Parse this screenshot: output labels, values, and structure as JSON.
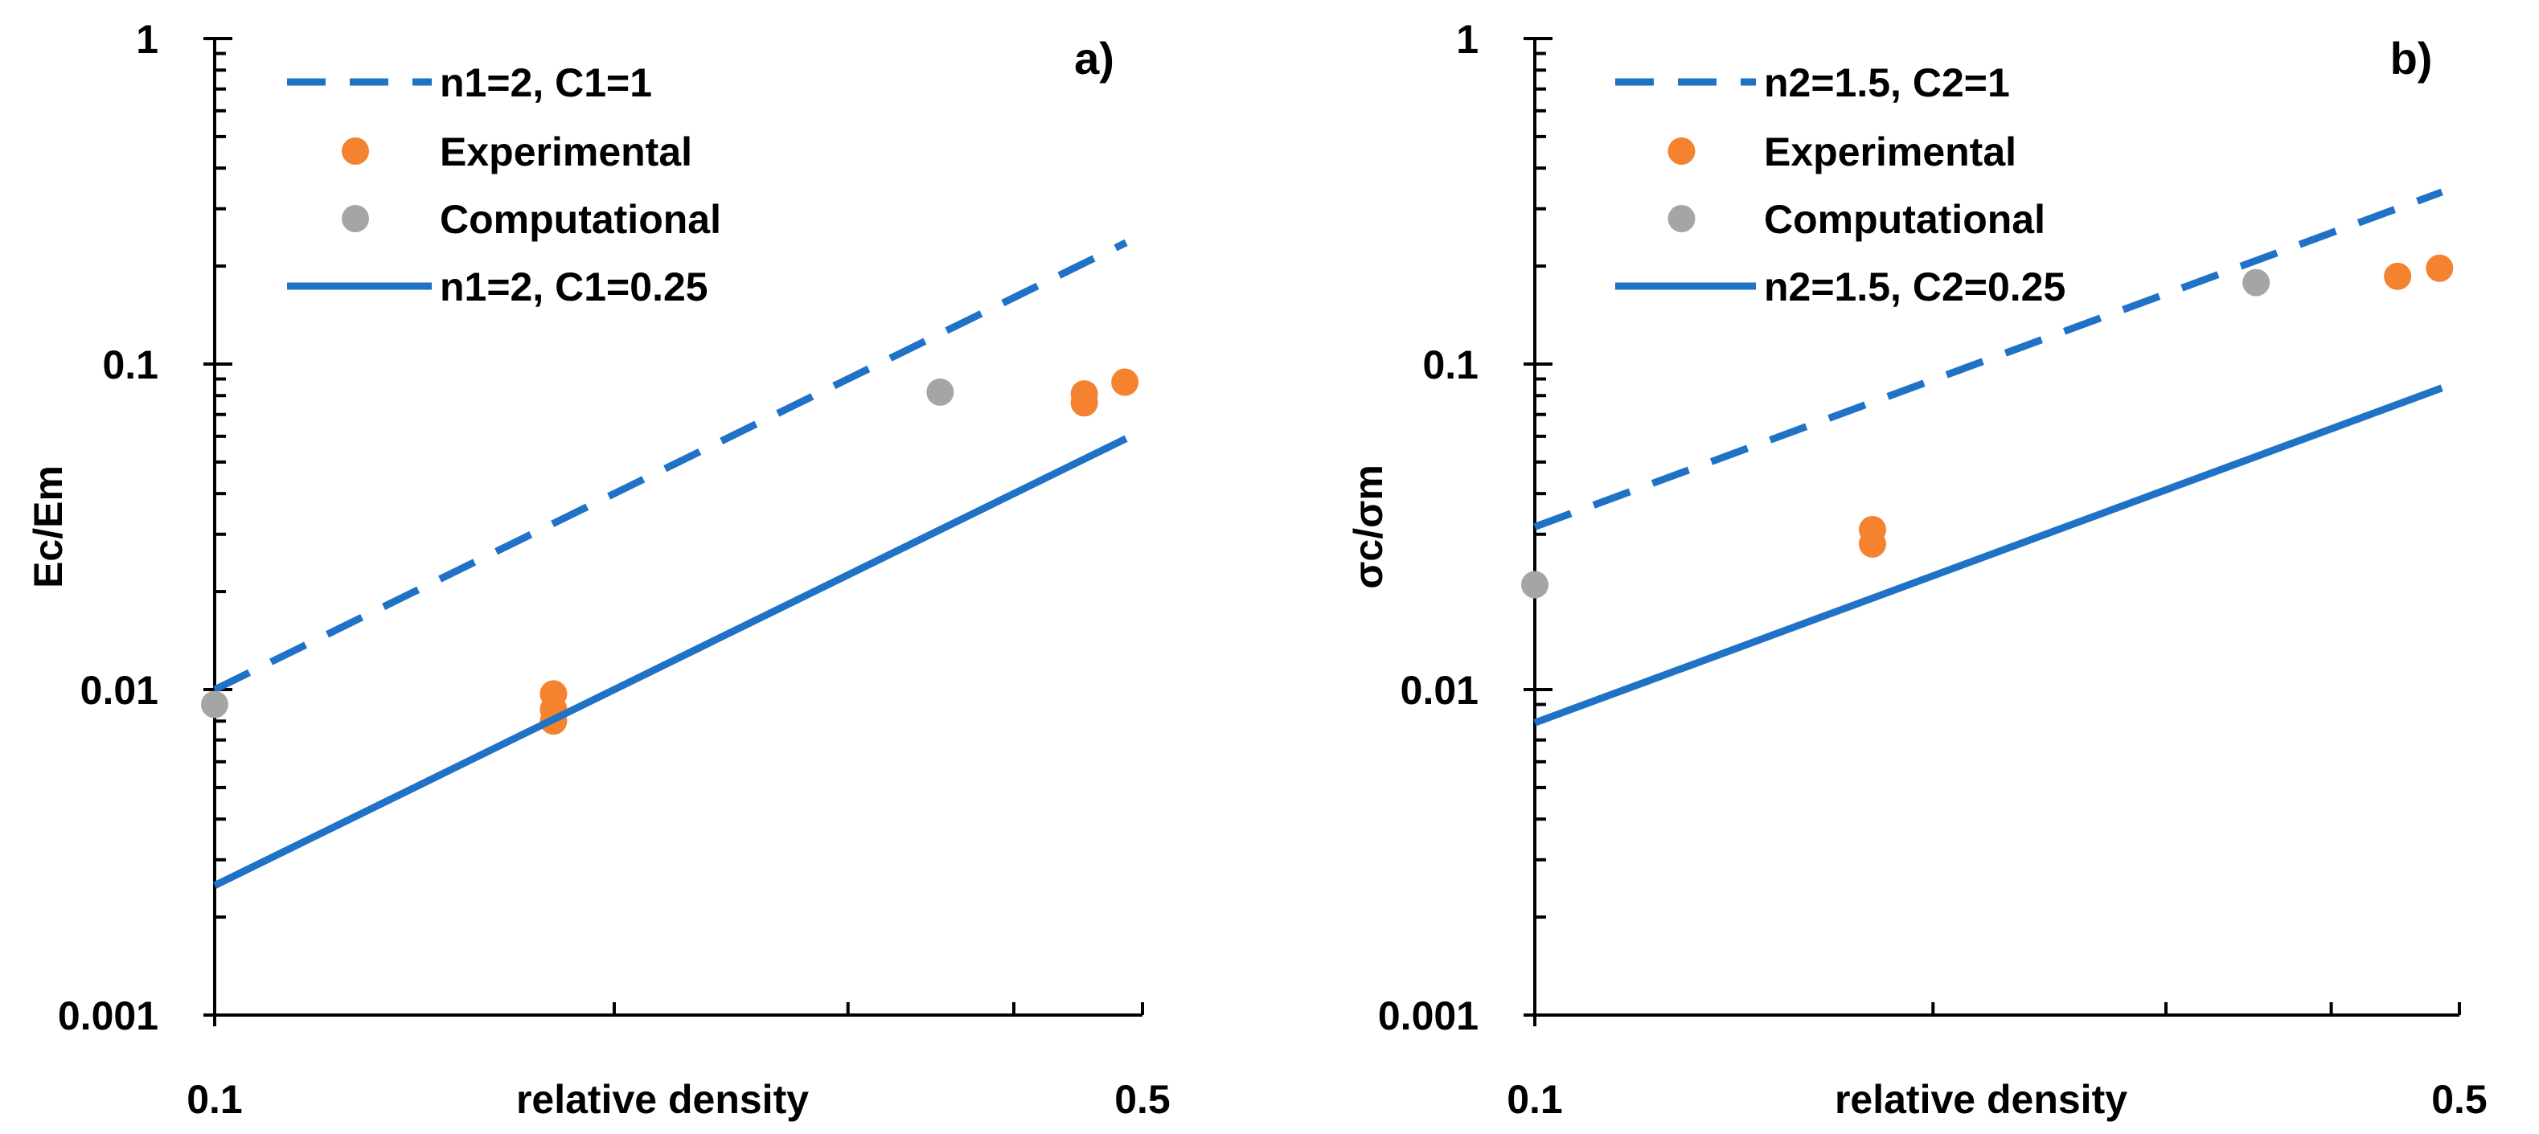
{
  "colors": {
    "line": "#1f72c6",
    "experimental": "#f5822f",
    "computational": "#a5a5a5",
    "axis": "#000000"
  },
  "chart_data": [
    {
      "type": "scatter",
      "panel_label": "a)",
      "xlabel": "relative density",
      "ylabel": "Ec/Em",
      "xscale": "log",
      "yscale": "log",
      "xlim": [
        0.1,
        0.5
      ],
      "ylim": [
        0.001,
        1
      ],
      "x_tick_labels": [
        "0.1",
        "0.5"
      ],
      "x_minor_ticks": [
        0.2,
        0.3,
        0.4
      ],
      "y_tick_labels": [
        "1",
        "0.1",
        "0.01",
        "0.001"
      ],
      "y_ticks": [
        1,
        0.1,
        0.01,
        0.001
      ],
      "legend_position": "top-left",
      "series": [
        {
          "name": "n1=2, C1=1",
          "kind": "line",
          "style": "dashed",
          "n": 2,
          "C": 1,
          "x": [
            0.1,
            0.486
          ]
        },
        {
          "name": "Experimental",
          "kind": "points",
          "x": [
            0.18,
            0.18,
            0.18,
            0.452,
            0.452,
            0.485
          ],
          "y": [
            0.0097,
            0.0087,
            0.008,
            0.081,
            0.076,
            0.088
          ]
        },
        {
          "name": "Computational",
          "kind": "points",
          "x": [
            0.1,
            0.352
          ],
          "y": [
            0.009,
            0.082
          ]
        },
        {
          "name": "n1=2, C1=0.25",
          "kind": "line",
          "style": "solid",
          "n": 2,
          "C": 0.25,
          "x": [
            0.1,
            0.486
          ]
        }
      ]
    },
    {
      "type": "scatter",
      "panel_label": "b)",
      "xlabel": "relative density",
      "ylabel": "σc/σm",
      "xscale": "log",
      "yscale": "log",
      "xlim": [
        0.1,
        0.5
      ],
      "ylim": [
        0.001,
        1
      ],
      "x_tick_labels": [
        "0.1",
        "0.5"
      ],
      "x_minor_ticks": [
        0.2,
        0.3,
        0.4
      ],
      "y_tick_labels": [
        "1",
        "0.1",
        "0.01",
        "0.001"
      ],
      "y_ticks": [
        1,
        0.1,
        0.01,
        0.001
      ],
      "legend_position": "top-left",
      "series": [
        {
          "name": "n2=1.5, C2=1",
          "kind": "line",
          "style": "dashed",
          "n": 1.5,
          "C": 1,
          "x": [
            0.1,
            0.485
          ]
        },
        {
          "name": "Experimental",
          "kind": "points",
          "x": [
            0.18,
            0.18,
            0.449,
            0.483
          ],
          "y": [
            0.031,
            0.028,
            0.186,
            0.197
          ]
        },
        {
          "name": "Computational",
          "kind": "points",
          "x": [
            0.1,
            0.351
          ],
          "y": [
            0.021,
            0.178
          ]
        },
        {
          "name": "n2=1.5, C2=0.25",
          "kind": "line",
          "style": "solid",
          "n": 1.5,
          "C": 0.25,
          "x": [
            0.1,
            0.485
          ]
        }
      ]
    }
  ]
}
